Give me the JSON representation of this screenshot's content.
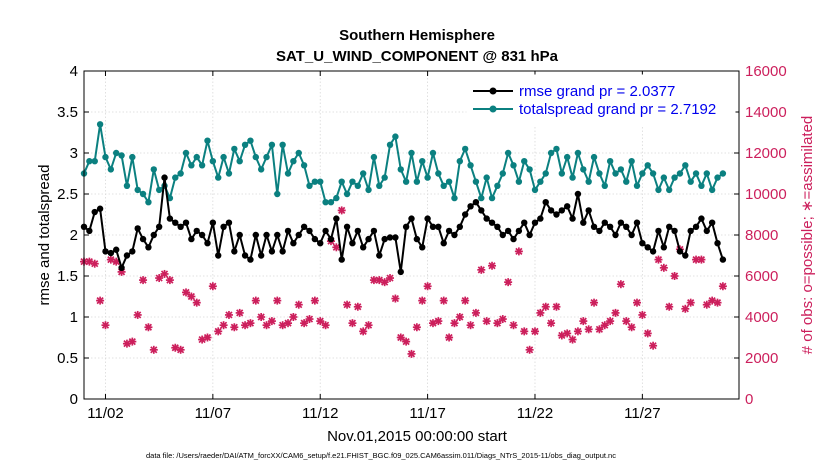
{
  "chart_data": {
    "type": "line",
    "title": "Southern Hemisphere",
    "subtitle": "SAT_U_WIND_COMPONENT @ 831 hPa",
    "xlabel": "Nov.01,2015 00:00:00 start",
    "ylabel": "rmse and totalspread",
    "ylabel_right": "# of obs: o=possible; ∗=assimilated",
    "xlim": [
      1,
      31.5
    ],
    "ylim": [
      0,
      4
    ],
    "ylim_right": [
      0,
      16000
    ],
    "x_ticks": [
      {
        "x": 2,
        "label": "11/02"
      },
      {
        "x": 7,
        "label": "11/07"
      },
      {
        "x": 12,
        "label": "11/12"
      },
      {
        "x": 17,
        "label": "11/17"
      },
      {
        "x": 22,
        "label": "11/22"
      },
      {
        "x": 27,
        "label": "11/27"
      }
    ],
    "y_ticks": [
      "0",
      "0.5",
      "1",
      "1.5",
      "2",
      "2.5",
      "3",
      "3.5",
      "4"
    ],
    "y_ticks_right": [
      "0",
      "2000",
      "4000",
      "6000",
      "8000",
      "10000",
      "12000",
      "14000",
      "16000"
    ],
    "legend_position": "top-right",
    "colors": {
      "rmse": "#000000",
      "spread": "#0b8080",
      "obs": "#cc1f5c"
    },
    "footnote": "data file: /Users/raeder/DAI/ATM_forcXX/CAM6_setup/f.e21.FHIST_BGC.f09_025.CAM6assim.011/Diags_NTrS_2015-11/obs_diag_output.nc",
    "series": [
      {
        "name": "rmse grand pr = 2.0377",
        "axis": "left",
        "x_start": 1.0,
        "x_step": 0.25,
        "values": [
          2.1,
          2.05,
          2.28,
          2.32,
          1.8,
          1.78,
          1.82,
          1.6,
          1.75,
          1.8,
          2.08,
          1.95,
          1.85,
          2.0,
          2.1,
          2.7,
          2.2,
          2.15,
          2.1,
          2.15,
          1.95,
          2.05,
          2.0,
          1.9,
          2.15,
          1.75,
          2.1,
          2.15,
          1.8,
          2.0,
          1.75,
          1.7,
          2.0,
          1.75,
          2.0,
          1.8,
          2.0,
          1.8,
          2.05,
          1.9,
          2.0,
          2.1,
          2.05,
          1.95,
          1.9,
          2.05,
          1.95,
          2.2,
          1.7,
          2.1,
          1.9,
          2.05,
          1.85,
          1.95,
          2.05,
          1.75,
          1.95,
          1.97,
          1.97,
          1.55,
          2.1,
          2.2,
          1.95,
          1.85,
          2.2,
          2.1,
          2.1,
          1.9,
          2.05,
          2.0,
          2.1,
          2.25,
          2.35,
          2.4,
          2.3,
          2.2,
          2.15,
          2.1,
          2.0,
          2.05,
          1.95,
          2.05,
          2.15,
          2.0,
          2.15,
          2.2,
          2.4,
          2.3,
          2.25,
          2.3,
          2.35,
          2.2,
          2.5,
          2.15,
          2.3,
          2.1,
          2.05,
          2.15,
          2.1,
          2.0,
          2.15,
          2.1,
          2.0,
          2.15,
          1.9,
          1.85,
          1.8,
          2.05,
          1.85,
          2.1,
          2.05,
          1.8,
          1.75,
          2.05,
          2.1,
          2.2,
          2.05,
          2.15,
          1.9,
          1.7
        ]
      },
      {
        "name": "totalspread grand pr = 2.7192",
        "axis": "left",
        "x_start": 1.0,
        "x_step": 0.25,
        "values": [
          2.75,
          2.9,
          2.9,
          3.35,
          2.95,
          2.8,
          3.0,
          2.97,
          2.6,
          2.95,
          2.55,
          2.5,
          2.4,
          2.8,
          2.55,
          2.6,
          2.45,
          2.7,
          2.75,
          3.0,
          2.85,
          2.95,
          2.85,
          3.15,
          2.9,
          2.7,
          2.95,
          2.75,
          3.05,
          2.9,
          3.1,
          3.15,
          2.95,
          2.8,
          2.95,
          3.1,
          2.5,
          3.1,
          2.75,
          2.9,
          3.0,
          2.85,
          2.6,
          2.65,
          2.65,
          2.4,
          2.4,
          2.45,
          2.65,
          2.5,
          2.65,
          2.6,
          2.75,
          2.55,
          2.95,
          2.6,
          2.7,
          3.1,
          3.2,
          2.8,
          2.65,
          3.0,
          2.65,
          2.9,
          2.7,
          3.0,
          2.75,
          2.6,
          2.65,
          2.45,
          2.9,
          3.05,
          2.85,
          2.65,
          2.45,
          2.7,
          2.45,
          2.6,
          2.75,
          3.0,
          2.85,
          2.65,
          2.9,
          2.8,
          2.55,
          2.65,
          2.75,
          3.0,
          3.05,
          2.75,
          2.95,
          2.7,
          3.0,
          2.8,
          2.65,
          2.95,
          2.75,
          2.6,
          2.9,
          2.75,
          2.8,
          2.65,
          2.9,
          2.6,
          2.75,
          2.85,
          2.75,
          2.55,
          2.7,
          2.55,
          2.7,
          2.75,
          2.85,
          2.65,
          2.75,
          2.6,
          2.75,
          2.55,
          2.7,
          2.75
        ]
      },
      {
        "name": "obs assimilated",
        "axis": "right",
        "style": "markers",
        "x_start": 1.0,
        "x_step": 0.25,
        "values": [
          6700,
          6700,
          6600,
          4800,
          3600,
          6800,
          6700,
          6200,
          2700,
          2800,
          4100,
          5800,
          3500,
          2400,
          5900,
          6100,
          5800,
          2500,
          2400,
          5200,
          5000,
          4700,
          2900,
          3000,
          5500,
          3300,
          3600,
          4100,
          3500,
          4200,
          3600,
          3700,
          4800,
          4000,
          3600,
          3800,
          4800,
          3600,
          3700,
          4000,
          4600,
          3700,
          3900,
          4800,
          3800,
          3600,
          7700,
          7400,
          9200,
          4600,
          3700,
          4500,
          3300,
          3600,
          5800,
          5800,
          5700,
          5900,
          4900,
          3000,
          2800,
          2200,
          3500,
          4800,
          5500,
          3700,
          3800,
          4800,
          3000,
          3700,
          4000,
          4800,
          3600,
          4200,
          6300,
          3800,
          6500,
          3700,
          3900,
          5700,
          3600,
          7200,
          3300,
          2400,
          3300,
          4200,
          4500,
          3700,
          4500,
          3100,
          3200,
          2900,
          3300,
          3800,
          3400,
          4700,
          3400,
          3600,
          3800,
          4200,
          5600,
          3800,
          3500,
          4700,
          4100,
          3200,
          2600,
          6800,
          6400,
          4500,
          6000,
          7300,
          4400,
          4700,
          6800,
          6800,
          4600,
          4800,
          4700,
          5500
        ]
      }
    ]
  }
}
